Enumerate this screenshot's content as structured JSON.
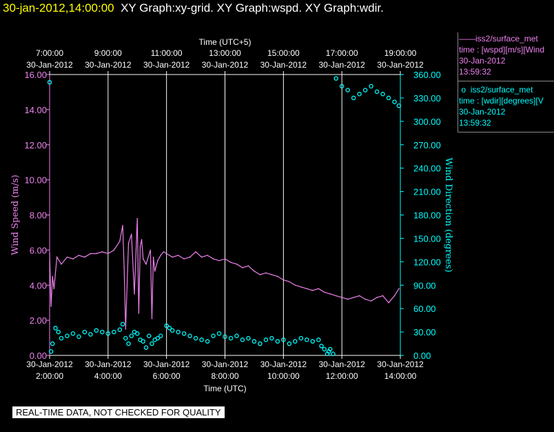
{
  "header": {
    "timestamp": "30-jan-2012,14:00:00",
    "graph_titles": "XY Graph:xy-grid.  XY Graph:wspd.  XY Graph:wdir."
  },
  "legend": [
    {
      "symbol": "——",
      "name": "iss2/surface_met",
      "field": "time : [wspd][m/s][Wind",
      "date": "30-Jan-2012",
      "time": "13:59:32",
      "color": "#ee82ee"
    },
    {
      "symbol": "o",
      "name": "iss2/surface_met",
      "field": "time : [wdir][degrees][V",
      "date": "30-Jan-2012",
      "time": "13:59:32",
      "color": "#00ffff"
    }
  ],
  "footer": {
    "note": "REAL-TIME DATA, NOT CHECKED FOR QUALITY"
  },
  "chart_data": {
    "type": "line",
    "x_bottom": {
      "label": "Time (UTC)",
      "ticks": [
        "2:00:00",
        "4:00:00",
        "6:00:00",
        "8:00:00",
        "10:00:00",
        "12:00:00",
        "14:00:00"
      ],
      "dates": [
        "30-Jan-2012",
        "30-Jan-2012",
        "30-Jan-2012",
        "30-Jan-2012",
        "30-Jan-2012",
        "30-Jan-2012",
        "30-Jan-2012"
      ],
      "range_hours_utc": [
        2,
        14
      ]
    },
    "x_top": {
      "label": "Time (UTC+5)",
      "ticks": [
        "7:00:00",
        "9:00:00",
        "11:00:00",
        "13:00:00",
        "15:00:00",
        "17:00:00",
        "19:00:00"
      ],
      "dates": [
        "30-Jan-2012",
        "30-Jan-2012",
        "30-Jan-2012",
        "30-Jan-2012",
        "30-Jan-2012",
        "30-Jan-2012",
        "30-Jan-2012"
      ]
    },
    "y_left": {
      "label": "Wind Speed (m/s)",
      "ticks": [
        "0.00",
        "2.00",
        "4.00",
        "6.00",
        "8.00",
        "10.00",
        "12.00",
        "14.00",
        "16.00"
      ],
      "range": [
        0,
        16
      ]
    },
    "y_right": {
      "label": "Wind Direction (degrees)",
      "ticks": [
        "0.00",
        "30.00",
        "60.00",
        "90.00",
        "120.00",
        "150.00",
        "180.00",
        "210.00",
        "240.00",
        "270.00",
        "300.00",
        "330.00",
        "360.00"
      ],
      "range": [
        0,
        360
      ]
    },
    "grid": "vertical lines at bottom x ticks",
    "series": [
      {
        "name": "iss2/surface_met",
        "quantity": "wspd",
        "axis": "left",
        "style": "line",
        "color": "#ee82ee",
        "x": [
          2.0,
          2.05,
          2.1,
          2.15,
          2.25,
          2.4,
          2.6,
          2.8,
          3.0,
          3.2,
          3.4,
          3.6,
          3.8,
          4.0,
          4.2,
          4.4,
          4.5,
          4.55,
          4.6,
          4.7,
          4.8,
          4.9,
          5.0,
          5.05,
          5.1,
          5.15,
          5.2,
          5.3,
          5.45,
          5.5,
          5.55,
          5.6,
          5.7,
          5.8,
          5.9,
          6.0,
          6.2,
          6.4,
          6.6,
          6.8,
          7.0,
          7.2,
          7.4,
          7.6,
          7.8,
          8.0,
          8.2,
          8.4,
          8.6,
          8.8,
          9.0,
          9.2,
          9.4,
          9.6,
          9.8,
          10.0,
          10.2,
          10.4,
          10.6,
          10.8,
          11.0,
          11.2,
          11.4,
          11.6,
          11.8,
          12.0,
          12.2,
          12.4,
          12.6,
          12.8,
          13.0,
          13.2,
          13.4,
          13.6,
          13.8,
          13.95
        ],
        "y": [
          5.8,
          2.8,
          4.5,
          3.8,
          5.6,
          5.2,
          5.6,
          5.5,
          5.7,
          5.6,
          5.8,
          5.8,
          5.9,
          5.8,
          6.0,
          6.5,
          7.4,
          5.0,
          1.5,
          6.4,
          6.9,
          3.5,
          7.8,
          2.4,
          6.2,
          6.6,
          5.5,
          5.2,
          6.0,
          2.1,
          5.6,
          4.8,
          5.4,
          5.7,
          5.9,
          5.8,
          5.6,
          5.7,
          5.5,
          5.6,
          5.9,
          5.6,
          5.7,
          5.5,
          5.4,
          5.5,
          5.3,
          5.2,
          5.0,
          5.1,
          4.8,
          4.6,
          4.7,
          4.6,
          4.5,
          4.3,
          4.2,
          4.0,
          3.9,
          3.8,
          3.7,
          3.8,
          3.6,
          3.5,
          3.4,
          3.3,
          3.2,
          3.3,
          3.4,
          3.2,
          3.1,
          3.3,
          3.4,
          3.0,
          3.4,
          3.8
        ]
      },
      {
        "name": "iss2/surface_met",
        "quantity": "wdir",
        "axis": "right",
        "style": "markers",
        "marker": "open circle",
        "color": "#00ffff",
        "x": [
          2.0,
          2.05,
          2.1,
          2.2,
          2.3,
          2.4,
          2.6,
          2.8,
          3.0,
          3.2,
          3.4,
          3.6,
          3.8,
          4.0,
          4.2,
          4.4,
          4.5,
          4.6,
          4.7,
          4.8,
          4.9,
          5.0,
          5.1,
          5.2,
          5.3,
          5.4,
          5.5,
          5.6,
          5.7,
          5.8,
          6.0,
          6.1,
          6.2,
          6.4,
          6.6,
          6.8,
          7.0,
          7.2,
          7.4,
          7.6,
          7.8,
          8.0,
          8.2,
          8.4,
          8.6,
          8.8,
          9.0,
          9.2,
          9.4,
          9.6,
          9.8,
          10.0,
          10.2,
          10.4,
          10.6,
          10.8,
          11.0,
          11.2,
          11.3,
          11.4,
          11.5,
          11.55,
          11.6,
          11.7,
          11.8,
          12.0,
          12.2,
          12.4,
          12.6,
          12.8,
          13.0,
          13.2,
          13.4,
          13.6,
          13.8,
          13.95
        ],
        "y": [
          350,
          5,
          15,
          35,
          30,
          22,
          25,
          28,
          24,
          30,
          27,
          32,
          30,
          28,
          30,
          33,
          40,
          22,
          15,
          25,
          30,
          28,
          20,
          18,
          10,
          25,
          15,
          20,
          22,
          25,
          38,
          35,
          32,
          30,
          28,
          25,
          22,
          20,
          18,
          25,
          28,
          24,
          22,
          25,
          20,
          22,
          18,
          15,
          20,
          22,
          18,
          20,
          15,
          18,
          22,
          20,
          18,
          20,
          12,
          8,
          2,
          5,
          8,
          2,
          355,
          345,
          340,
          330,
          335,
          340,
          345,
          338,
          335,
          330,
          325,
          320
        ]
      }
    ]
  }
}
